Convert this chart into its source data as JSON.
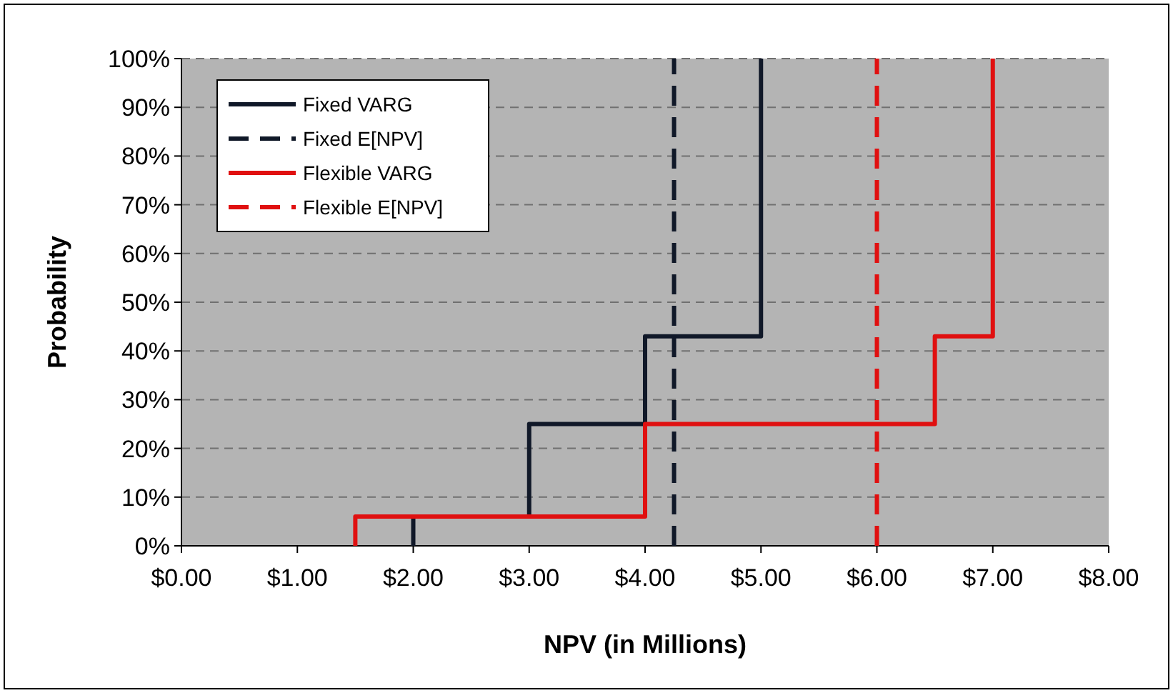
{
  "chart_data": {
    "type": "step",
    "xlabel": "NPV (in Millions)",
    "ylabel": "Probability",
    "xlim": [
      0,
      8
    ],
    "xticks": [
      {
        "value": 0,
        "label": "$0.00"
      },
      {
        "value": 1,
        "label": "$1.00"
      },
      {
        "value": 2,
        "label": "$2.00"
      },
      {
        "value": 3,
        "label": "$3.00"
      },
      {
        "value": 4,
        "label": "$4.00"
      },
      {
        "value": 5,
        "label": "$5.00"
      },
      {
        "value": 6,
        "label": "$6.00"
      },
      {
        "value": 7,
        "label": "$7.00"
      },
      {
        "value": 8,
        "label": "$8.00"
      }
    ],
    "ylim": [
      0,
      100
    ],
    "yticks": [
      {
        "value": 0,
        "label": "0%"
      },
      {
        "value": 10,
        "label": "10%"
      },
      {
        "value": 20,
        "label": "20%"
      },
      {
        "value": 30,
        "label": "30%"
      },
      {
        "value": 40,
        "label": "40%"
      },
      {
        "value": 50,
        "label": "50%"
      },
      {
        "value": 60,
        "label": "60%"
      },
      {
        "value": 70,
        "label": "70%"
      },
      {
        "value": 80,
        "label": "80%"
      },
      {
        "value": 90,
        "label": "90%"
      },
      {
        "value": 100,
        "label": "100%"
      }
    ],
    "grid": "y",
    "legend": "top left",
    "series": [
      {
        "name": "Fixed VARG",
        "color": "#101828",
        "x": [
          2,
          2,
          3,
          4,
          5
        ],
        "values": [
          0,
          6,
          25,
          43,
          100
        ],
        "line_style": "solid"
      },
      {
        "name": "Fixed E[NPV]",
        "color": "#101828",
        "x": [
          4.25,
          4.25
        ],
        "values": [
          0,
          100
        ],
        "line_style": "dashed"
      },
      {
        "name": "Flexible VARG",
        "color": "#e01010",
        "x": [
          1.5,
          1.5,
          4,
          6.5,
          7
        ],
        "values": [
          0,
          6,
          25,
          43,
          100
        ],
        "line_style": "solid"
      },
      {
        "name": "Flexible E[NPV]",
        "color": "#e01010",
        "x": [
          6,
          6
        ],
        "values": [
          0,
          100
        ],
        "line_style": "dashed"
      }
    ]
  }
}
